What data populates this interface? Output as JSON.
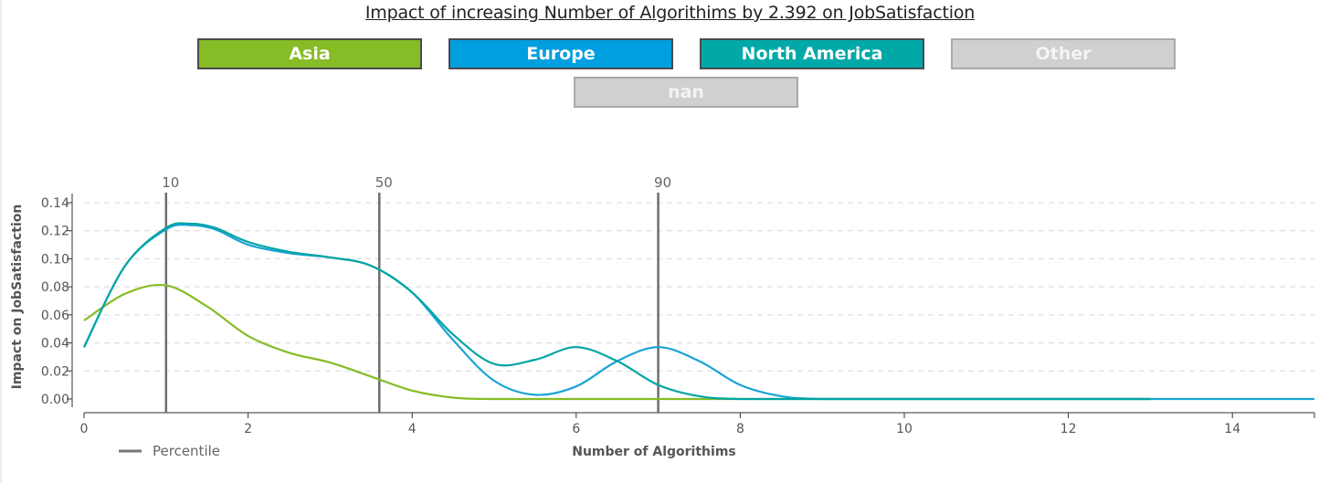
{
  "title": "Impact of increasing Number of Algorithims by 2.392 on JobSatisfaction",
  "legend_buttons": [
    {
      "label": "Asia",
      "color": "#86bc25",
      "active": true
    },
    {
      "label": "Europe",
      "color": "#009fe0",
      "active": true
    },
    {
      "label": "North America",
      "color": "#00a9a8",
      "active": true
    },
    {
      "label": "Other",
      "color": "#d0d0d0",
      "active": false
    },
    {
      "label": "nan",
      "color": "#d0d0d0",
      "active": false
    }
  ],
  "chart_data": {
    "type": "line",
    "xlabel": "Number of Algorithims",
    "ylabel": "Impact on JobSatisfaction",
    "xlim": [
      0,
      15
    ],
    "ylim": [
      0,
      0.14
    ],
    "x_ticks": [
      "0",
      "2",
      "4",
      "6",
      "8",
      "10",
      "12",
      "14"
    ],
    "y_ticks": [
      "0.00",
      "0.02",
      "0.04",
      "0.06",
      "0.08",
      "0.10",
      "0.12",
      "0.14"
    ],
    "grid": true,
    "percentiles": [
      {
        "label": "10",
        "x": 1.0
      },
      {
        "label": "50",
        "x": 3.6
      },
      {
        "label": "90",
        "x": 7.0
      }
    ],
    "percentile_legend": "Percentile",
    "series": [
      {
        "name": "Asia",
        "color": "#86bc25",
        "x": [
          0,
          0.5,
          1,
          1.5,
          2,
          2.5,
          3,
          3.5,
          4,
          4.5,
          5,
          6,
          7,
          8,
          10,
          12,
          13
        ],
        "y": [
          0.056,
          0.075,
          0.081,
          0.066,
          0.045,
          0.033,
          0.026,
          0.016,
          0.006,
          0.001,
          0.0,
          0.0,
          0.0,
          0.0,
          0.0,
          0.0,
          0.0
        ]
      },
      {
        "name": "Europe",
        "color": "#1aa3d6",
        "x": [
          0,
          0.5,
          1,
          1.3,
          1.6,
          2,
          2.5,
          3,
          3.5,
          4,
          4.5,
          5,
          5.5,
          6,
          6.5,
          7,
          7.5,
          8,
          8.5,
          9,
          10,
          12,
          15
        ],
        "y": [
          0.037,
          0.095,
          0.121,
          0.124,
          0.121,
          0.11,
          0.104,
          0.101,
          0.095,
          0.076,
          0.042,
          0.013,
          0.003,
          0.009,
          0.027,
          0.037,
          0.027,
          0.01,
          0.002,
          0.0,
          0.0,
          0.0,
          0.0
        ]
      },
      {
        "name": "North America",
        "color": "#00a5a3",
        "x": [
          0,
          0.5,
          1,
          1.3,
          1.6,
          2,
          2.5,
          3,
          3.5,
          4,
          4.5,
          5,
          5.5,
          6,
          6.5,
          7,
          7.5,
          8,
          9,
          10,
          12,
          13
        ],
        "y": [
          0.037,
          0.095,
          0.122,
          0.125,
          0.122,
          0.112,
          0.105,
          0.101,
          0.095,
          0.076,
          0.046,
          0.025,
          0.028,
          0.037,
          0.027,
          0.01,
          0.002,
          0.0,
          0.0,
          0.0,
          0.0,
          0.0
        ]
      }
    ]
  }
}
